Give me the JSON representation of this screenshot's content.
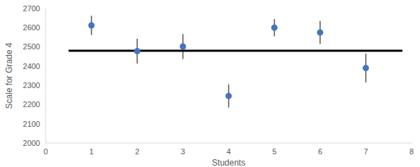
{
  "chart_data": {
    "type": "scatter",
    "x_label": "Students",
    "y_label": "Scale for Grade 4",
    "x": [
      1,
      2,
      3,
      4,
      5,
      6,
      7
    ],
    "values": [
      2612,
      2478,
      2502,
      2245,
      2600,
      2575,
      2390
    ],
    "errors": [
      50,
      65,
      65,
      60,
      45,
      60,
      75
    ],
    "color": "#4472c4",
    "marker": "circle",
    "xlim": [
      0,
      8
    ],
    "xticks": [
      0,
      1,
      2,
      3,
      4,
      5,
      6,
      7,
      8
    ],
    "ylim": [
      2000,
      2700
    ],
    "yticks": [
      2000,
      2100,
      2200,
      2300,
      2400,
      2500,
      2600,
      2700
    ],
    "grid": false,
    "reference_line": {
      "value": 2480,
      "x_range": [
        0.5,
        7.8
      ]
    }
  }
}
